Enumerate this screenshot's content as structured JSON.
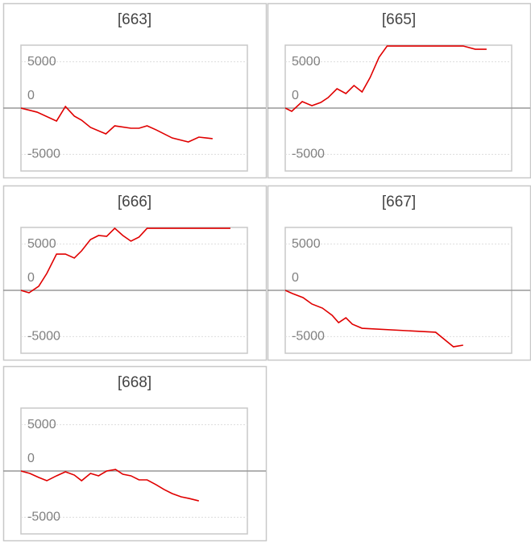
{
  "chart_data": [
    {
      "type": "line",
      "title": "[663]",
      "xlim": [
        0,
        28
      ],
      "ylim": [
        -6800,
        6800
      ],
      "yticks": [
        5000,
        0,
        -5000
      ],
      "grid": true,
      "series": [
        {
          "color": "#e00000",
          "x": [
            0,
            2,
            4.4,
            5.5,
            6.6,
            7.5,
            8.6,
            10.5,
            11.6,
            13.6,
            14.6,
            15.6,
            16.7,
            18.7,
            20.7,
            22,
            23.7
          ],
          "values": [
            0,
            -440,
            -1400,
            170,
            -870,
            -1310,
            -2090,
            -2790,
            -1920,
            -2180,
            -2180,
            -1920,
            -2350,
            -3230,
            -3660,
            -3140,
            -3310
          ]
        }
      ]
    },
    {
      "type": "line",
      "title": "[665]",
      "xlim": [
        0,
        28
      ],
      "ylim": [
        -6800,
        6800
      ],
      "yticks": [
        5000,
        0,
        -5000
      ],
      "grid": true,
      "series": [
        {
          "color": "#e00000",
          "x": [
            0,
            0.8,
            2.1,
            3.3,
            4.4,
            5.3,
            6.4,
            7.5,
            8.5,
            9.5,
            10.5,
            11.6,
            12.6,
            22,
            23.5,
            24.9
          ],
          "values": [
            0,
            -350,
            700,
            260,
            610,
            1130,
            2090,
            1570,
            2440,
            1740,
            3310,
            5490,
            6710,
            6710,
            6360,
            6360
          ]
        }
      ]
    },
    {
      "type": "line",
      "title": "[666]",
      "xlim": [
        0,
        28
      ],
      "ylim": [
        -6800,
        6800
      ],
      "yticks": [
        5000,
        0,
        -5000
      ],
      "grid": true,
      "series": [
        {
          "color": "#e00000",
          "x": [
            0,
            1,
            2.2,
            3.2,
            4.4,
            5.5,
            6.6,
            7.5,
            8.6,
            9.6,
            10.6,
            11.6,
            12.6,
            13.6,
            14.6,
            15.6,
            25.9
          ],
          "values": [
            0,
            -260,
            440,
            1830,
            3920,
            3920,
            3490,
            4270,
            5490,
            5930,
            5840,
            6710,
            5930,
            5320,
            5760,
            6710,
            6710
          ]
        }
      ]
    },
    {
      "type": "line",
      "title": "[667]",
      "xlim": [
        0,
        28
      ],
      "ylim": [
        -6800,
        6800
      ],
      "yticks": [
        5000,
        0,
        -5000
      ],
      "grid": true,
      "series": [
        {
          "color": "#e00000",
          "x": [
            0,
            0.9,
            2.2,
            3.3,
            4.6,
            5.8,
            6.6,
            7.5,
            8.3,
            9.5,
            18.6,
            20.8,
            22
          ],
          "values": [
            0,
            -350,
            -780,
            -1480,
            -1920,
            -2700,
            -3490,
            -2970,
            -3660,
            -4100,
            -4530,
            -6100,
            -5930
          ]
        }
      ]
    },
    {
      "type": "line",
      "title": "[668]",
      "xlim": [
        0,
        28
      ],
      "ylim": [
        -6800,
        6800
      ],
      "yticks": [
        5000,
        0,
        -5000
      ],
      "grid": true,
      "series": [
        {
          "color": "#e00000",
          "x": [
            0,
            1.1,
            2.2,
            3.2,
            4.4,
            5.5,
            6.6,
            7.5,
            8.6,
            9.6,
            10.6,
            11.7,
            12.6,
            13.6,
            14.6,
            15.6,
            16.7,
            17.7,
            18.7,
            19.8,
            20.8,
            22
          ],
          "values": [
            0,
            -260,
            -700,
            -1050,
            -520,
            -90,
            -440,
            -1050,
            -260,
            -520,
            0,
            170,
            -350,
            -520,
            -960,
            -960,
            -1480,
            -2000,
            -2440,
            -2790,
            -2970,
            -3230
          ]
        }
      ]
    }
  ]
}
